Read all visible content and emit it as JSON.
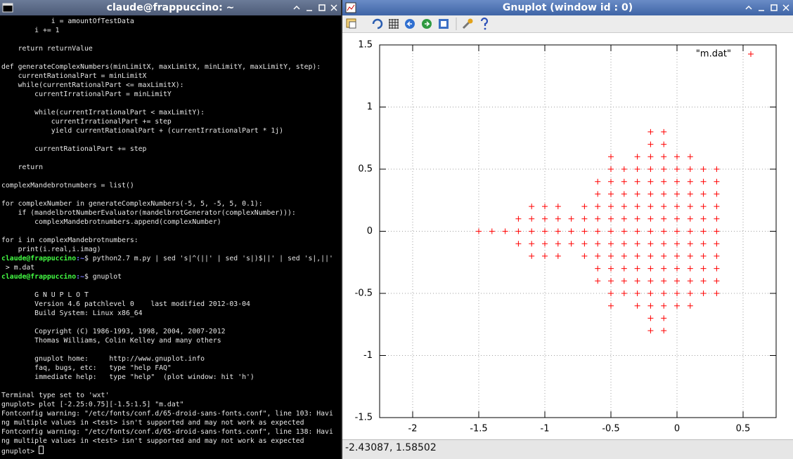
{
  "terminal": {
    "title": "claude@frappuccino: ~",
    "lines": [
      "            i = amountOfTestData",
      "        i += 1",
      null,
      "    return returnValue",
      null,
      "def generateComplexNumbers(minLimitX, maxLimitX, minLimitY, maxLimitY, step):",
      "    currentRationalPart = minLimitX",
      "    while(currentRationalPart <= maxLimitX):",
      "        currentIrrationalPart = minLimitY",
      null,
      "        while(currentIrrationalPart < maxLimitY):",
      "            currentIrrationalPart += step",
      "            yield currentRationalPart + (currentIrrationalPart * 1j)",
      null,
      "        currentRationalPart += step",
      null,
      "    return",
      null,
      "complexMandebrotnumbers = list()",
      null,
      "for complexNumber in generateComplexNumbers(-5, 5, -5, 5, 0.1):",
      "    if (mandelbrotNumberEvaluator(mandelbrotGenerator(complexNumber))):",
      "        complexMandebrotnumbers.append(complexNumber)",
      null,
      "for i in complexMandebrotnumbers:",
      "    print(i.real,i.imag)",
      {
        "user": "claude@frappuccino",
        "path": ":~",
        "command": "$ python2.7 m.py | sed 's|^(||' | sed 's|)$||' | sed 's|,||'"
      },
      " > m.dat",
      {
        "user": "claude@frappuccino",
        "path": ":~",
        "command": "$ gnuplot"
      },
      null,
      "        G N U P L O T",
      "        Version 4.6 patchlevel 0    last modified 2012-03-04",
      "        Build System: Linux x86_64",
      null,
      "        Copyright (C) 1986-1993, 1998, 2004, 2007-2012",
      "        Thomas Williams, Colin Kelley and many others",
      null,
      "        gnuplot home:     http://www.gnuplot.info",
      "        faq, bugs, etc:   type \"help FAQ\"",
      "        immediate help:   type \"help\"  (plot window: hit 'h')",
      null,
      "Terminal type set to 'wxt'",
      "gnuplot> plot [-2.25:0.75][-1.5:1.5] \"m.dat\"",
      "Fontconfig warning: \"/etc/fonts/conf.d/65-droid-sans-fonts.conf\", line 103: Havi",
      "ng multiple values in <test> isn't supported and may not work as expected",
      "Fontconfig warning: \"/etc/fonts/conf.d/65-droid-sans-fonts.conf\", line 138: Havi",
      "ng multiple values in <test> isn't supported and may not work as expected",
      "gnuplot> "
    ]
  },
  "gnuplot_window": {
    "title": "Gnuplot (window id : 0)",
    "status": "-2.43087, 1.58502"
  },
  "chart_data": {
    "type": "scatter",
    "x": [
      -0.2,
      -0.1,
      -0.2,
      -0.1,
      -0.5,
      -0.3,
      -0.2,
      -0.1,
      0,
      0.1,
      -0.5,
      -0.4,
      -0.3,
      -0.2,
      -0.1,
      0,
      0.1,
      0.2,
      0.3,
      -0.6,
      -0.5,
      -0.4,
      -0.3,
      -0.2,
      -0.1,
      0,
      0.1,
      0.2,
      0.3,
      -0.6,
      -0.5,
      -0.4,
      -0.3,
      -0.2,
      -0.1,
      0,
      0.1,
      0.2,
      0.3,
      -1.1,
      -1,
      -0.9,
      -0.7,
      -0.6,
      -0.5,
      -0.4,
      -0.3,
      -0.2,
      -0.1,
      0,
      0.1,
      0.2,
      0.3,
      -1.2,
      -1.1,
      -1,
      -0.9,
      -0.8,
      -0.7,
      -0.6,
      -0.5,
      -0.4,
      -0.3,
      -0.2,
      -0.1,
      0,
      0.1,
      0.2,
      0.3,
      -1.5,
      -1.4,
      -1.3,
      -1.2,
      -1.1,
      -1,
      -0.9,
      -0.8,
      -0.7,
      -0.6,
      -0.5,
      -0.4,
      -0.3,
      -0.2,
      -0.1,
      0,
      0.1,
      0.2,
      0.3,
      -1.2,
      -1.1,
      -1,
      -0.9,
      -0.8,
      -0.7,
      -0.6,
      -0.5,
      -0.4,
      -0.3,
      -0.2,
      -0.1,
      0,
      0.1,
      0.2,
      0.3,
      -1.1,
      -1,
      -0.9,
      -0.7,
      -0.6,
      -0.5,
      -0.4,
      -0.3,
      -0.2,
      -0.1,
      0,
      0.1,
      0.2,
      0.3,
      -0.6,
      -0.5,
      -0.4,
      -0.3,
      -0.2,
      -0.1,
      0,
      0.1,
      0.2,
      0.3,
      -0.6,
      -0.5,
      -0.4,
      -0.3,
      -0.2,
      -0.1,
      0,
      0.1,
      0.2,
      0.3,
      -0.5,
      -0.4,
      -0.3,
      -0.2,
      -0.1,
      0,
      0.1,
      0.2,
      0.3,
      -0.5,
      -0.3,
      -0.2,
      -0.1,
      0,
      0.1,
      -0.2,
      -0.1,
      -0.2,
      -0.1
    ],
    "series": [
      {
        "name": "\"m.dat\"",
        "color": "#ff0000",
        "values": [
          0.8,
          0.8,
          0.7,
          0.7,
          0.6,
          0.6,
          0.6,
          0.6,
          0.6,
          0.6,
          0.5,
          0.5,
          0.5,
          0.5,
          0.5,
          0.5,
          0.5,
          0.5,
          0.5,
          0.4,
          0.4,
          0.4,
          0.4,
          0.4,
          0.4,
          0.4,
          0.4,
          0.4,
          0.4,
          0.3,
          0.3,
          0.3,
          0.3,
          0.3,
          0.3,
          0.3,
          0.3,
          0.3,
          0.3,
          0.2,
          0.2,
          0.2,
          0.2,
          0.2,
          0.2,
          0.2,
          0.2,
          0.2,
          0.2,
          0.2,
          0.2,
          0.2,
          0.2,
          0.1,
          0.1,
          0.1,
          0.1,
          0.1,
          0.1,
          0.1,
          0.1,
          0.1,
          0.1,
          0.1,
          0.1,
          0.1,
          0.1,
          0.1,
          0.1,
          0,
          0,
          0,
          0,
          0,
          0,
          0,
          0,
          0,
          0,
          0,
          0,
          0,
          0,
          0,
          0,
          0,
          0,
          0,
          -0.1,
          -0.1,
          -0.1,
          -0.1,
          -0.1,
          -0.1,
          -0.1,
          -0.1,
          -0.1,
          -0.1,
          -0.1,
          -0.1,
          -0.1,
          -0.1,
          -0.1,
          -0.1,
          -0.2,
          -0.2,
          -0.2,
          -0.2,
          -0.2,
          -0.2,
          -0.2,
          -0.2,
          -0.2,
          -0.2,
          -0.2,
          -0.2,
          -0.2,
          -0.2,
          -0.3,
          -0.3,
          -0.3,
          -0.3,
          -0.3,
          -0.3,
          -0.3,
          -0.3,
          -0.3,
          -0.3,
          -0.4,
          -0.4,
          -0.4,
          -0.4,
          -0.4,
          -0.4,
          -0.4,
          -0.4,
          -0.4,
          -0.4,
          -0.5,
          -0.5,
          -0.5,
          -0.5,
          -0.5,
          -0.5,
          -0.5,
          -0.5,
          -0.5,
          -0.6,
          -0.6,
          -0.6,
          -0.6,
          -0.6,
          -0.6,
          -0.7,
          -0.7,
          -0.8,
          -0.8
        ]
      }
    ],
    "xlim": [
      -2.25,
      0.75
    ],
    "ylim": [
      -1.5,
      1.5
    ],
    "xticks": [
      -2,
      -1.5,
      -1,
      -0.5,
      0,
      0.5
    ],
    "yticks": [
      -1.5,
      -1,
      -0.5,
      0,
      0.5,
      1,
      1.5
    ],
    "grid": true,
    "legend": "top-right"
  }
}
